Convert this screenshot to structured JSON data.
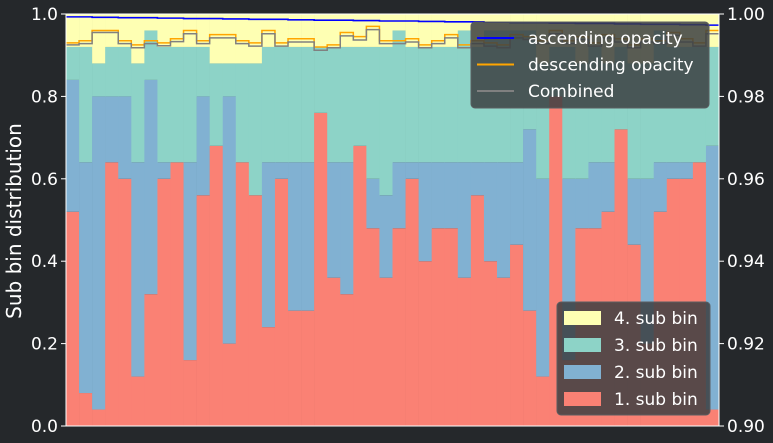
{
  "chart_data": {
    "type": "bar",
    "stacked": true,
    "ylabel": "Sub bin distribution",
    "ylim": [
      0.0,
      1.0
    ],
    "y2lim": [
      0.9,
      1.0
    ],
    "yticks": [
      "0.0",
      "0.2",
      "0.4",
      "0.6",
      "0.8",
      "1.0"
    ],
    "y2ticks": [
      "0.90",
      "0.92",
      "0.94",
      "0.96",
      "0.98",
      "1.00"
    ],
    "bins": 50,
    "stack_series": [
      {
        "name": "1. sub bin",
        "color": "#fa8174",
        "values": [
          0.52,
          0.08,
          0.04,
          0.64,
          0.6,
          0.12,
          0.32,
          0.6,
          0.64,
          0.16,
          0.56,
          0.68,
          0.2,
          0.64,
          0.56,
          0.24,
          0.6,
          0.28,
          0.28,
          0.76,
          0.36,
          0.32,
          0.68,
          0.48,
          0.36,
          0.48,
          0.6,
          0.4,
          0.48,
          0.48,
          0.36,
          0.56,
          0.4,
          0.36,
          0.44,
          0.28,
          0.12,
          0.8,
          0.16,
          0.48,
          0.48,
          0.52,
          0.72,
          0.44,
          0.2,
          0.52,
          0.6,
          0.6,
          0.64,
          0.04
        ]
      },
      {
        "name": "2. sub bin",
        "color": "#81b1d2",
        "values": [
          0.32,
          0.56,
          0.76,
          0.16,
          0.2,
          0.52,
          0.52,
          0.04,
          0.0,
          0.48,
          0.24,
          0.0,
          0.6,
          0.0,
          0.0,
          0.4,
          0.04,
          0.36,
          0.36,
          0.0,
          0.28,
          0.32,
          0.0,
          0.12,
          0.2,
          0.16,
          0.04,
          0.24,
          0.16,
          0.16,
          0.28,
          0.08,
          0.24,
          0.28,
          0.2,
          0.44,
          0.48,
          0.0,
          0.44,
          0.12,
          0.16,
          0.12,
          0.0,
          0.16,
          0.4,
          0.12,
          0.04,
          0.04,
          0.0,
          0.64
        ]
      },
      {
        "name": "3. sub bin",
        "color": "#8dd3c7",
        "values": [
          0.08,
          0.28,
          0.08,
          0.12,
          0.12,
          0.24,
          0.12,
          0.28,
          0.28,
          0.28,
          0.12,
          0.2,
          0.08,
          0.24,
          0.32,
          0.28,
          0.28,
          0.28,
          0.28,
          0.16,
          0.28,
          0.28,
          0.24,
          0.32,
          0.36,
          0.32,
          0.28,
          0.28,
          0.28,
          0.28,
          0.32,
          0.28,
          0.32,
          0.32,
          0.32,
          0.24,
          0.28,
          0.12,
          0.32,
          0.28,
          0.28,
          0.24,
          0.2,
          0.28,
          0.28,
          0.32,
          0.28,
          0.28,
          0.28,
          0.24
        ]
      },
      {
        "name": "4. sub bin",
        "color": "#feffb3",
        "values": [
          0.08,
          0.08,
          0.12,
          0.08,
          0.08,
          0.12,
          0.04,
          0.08,
          0.08,
          0.08,
          0.08,
          0.12,
          0.12,
          0.12,
          0.12,
          0.08,
          0.08,
          0.08,
          0.08,
          0.08,
          0.08,
          0.08,
          0.08,
          0.08,
          0.08,
          0.04,
          0.08,
          0.08,
          0.08,
          0.08,
          0.04,
          0.08,
          0.04,
          0.04,
          0.04,
          0.04,
          0.12,
          0.08,
          0.08,
          0.12,
          0.08,
          0.12,
          0.08,
          0.12,
          0.12,
          0.04,
          0.08,
          0.08,
          0.08,
          0.08
        ]
      }
    ],
    "step_series": [
      {
        "name": "ascending opacity",
        "color": "#0000ff",
        "values": [
          0.9993,
          0.9993,
          0.9992,
          0.9992,
          0.9991,
          0.9991,
          0.9991,
          0.999,
          0.999,
          0.9989,
          0.9989,
          0.9989,
          0.9988,
          0.9988,
          0.9987,
          0.9987,
          0.9987,
          0.9986,
          0.9986,
          0.9985,
          0.9985,
          0.9985,
          0.9984,
          0.9984,
          0.9983,
          0.9983,
          0.9983,
          0.9982,
          0.9982,
          0.9981,
          0.9981,
          0.9981,
          0.998,
          0.998,
          0.9979,
          0.9979,
          0.9979,
          0.9978,
          0.9978,
          0.9977,
          0.9977,
          0.9977,
          0.9976,
          0.9976,
          0.9975,
          0.9975,
          0.9975,
          0.9974,
          0.9974,
          0.9973
        ]
      },
      {
        "name": "descending opacity",
        "color": "#ffa500",
        "values": [
          0.993,
          0.9935,
          0.996,
          0.996,
          0.9935,
          0.9925,
          0.9935,
          0.993,
          0.994,
          0.996,
          0.9935,
          0.995,
          0.995,
          0.9935,
          0.993,
          0.996,
          0.993,
          0.994,
          0.994,
          0.992,
          0.9925,
          0.9955,
          0.9945,
          0.997,
          0.9935,
          0.9935,
          0.994,
          0.9925,
          0.9935,
          0.995,
          0.9925,
          0.9935,
          0.993,
          0.9925,
          0.995,
          0.9945,
          0.9935,
          0.996,
          0.9935,
          0.9945,
          0.993,
          0.995,
          0.994,
          0.9925,
          0.994,
          0.9935,
          0.9955,
          0.994,
          0.993,
          0.996
        ]
      },
      {
        "name": "Combined",
        "color": "#808080",
        "values": [
          0.9925,
          0.9928,
          0.9955,
          0.9955,
          0.9928,
          0.9918,
          0.9928,
          0.9923,
          0.9933,
          0.9952,
          0.9928,
          0.9942,
          0.9942,
          0.9928,
          0.9922,
          0.9952,
          0.9922,
          0.9932,
          0.9932,
          0.9912,
          0.9918,
          0.9947,
          0.9937,
          0.9962,
          0.9928,
          0.9928,
          0.9932,
          0.9918,
          0.9928,
          0.9942,
          0.9918,
          0.9928,
          0.9922,
          0.9918,
          0.9942,
          0.9938,
          0.9928,
          0.9952,
          0.9928,
          0.9938,
          0.9922,
          0.9942,
          0.9932,
          0.9918,
          0.9932,
          0.9928,
          0.9948,
          0.9932,
          0.9922,
          0.9952
        ]
      }
    ]
  }
}
